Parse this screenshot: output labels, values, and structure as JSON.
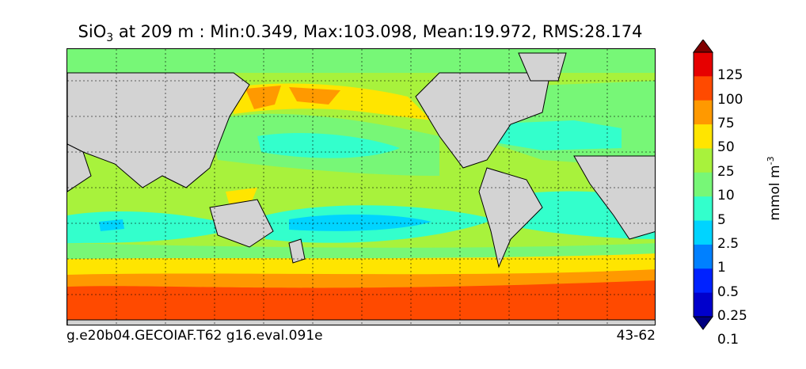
{
  "title": {
    "variable": "SiO",
    "subscript": "3",
    "rest": " at 209 m : Min:0.349, Max:103.098, Mean:19.972, RMS:28.174"
  },
  "caption": {
    "left": "g.e20b04.GECOIAF.T62 g16.eval.091e",
    "right": "43-62"
  },
  "colorbar": {
    "units_base": "mmol m",
    "units_exp": "-3",
    "labels": [
      "125",
      "100",
      "75",
      "50",
      "25",
      "10",
      "5",
      "2.5",
      "1",
      "0.5",
      "0.25",
      "0.1"
    ],
    "colors": [
      "#00007f",
      "#0000cc",
      "#0022ff",
      "#0080ff",
      "#00d4ff",
      "#33ffcc",
      "#77f777",
      "#a8f23c",
      "#ffe500",
      "#ff9900",
      "#ff4a00",
      "#e60000",
      "#7f0000"
    ],
    "extend": "both"
  },
  "map": {
    "land_color": "#d3d3d3",
    "ice_color": "#ffffff"
  }
}
